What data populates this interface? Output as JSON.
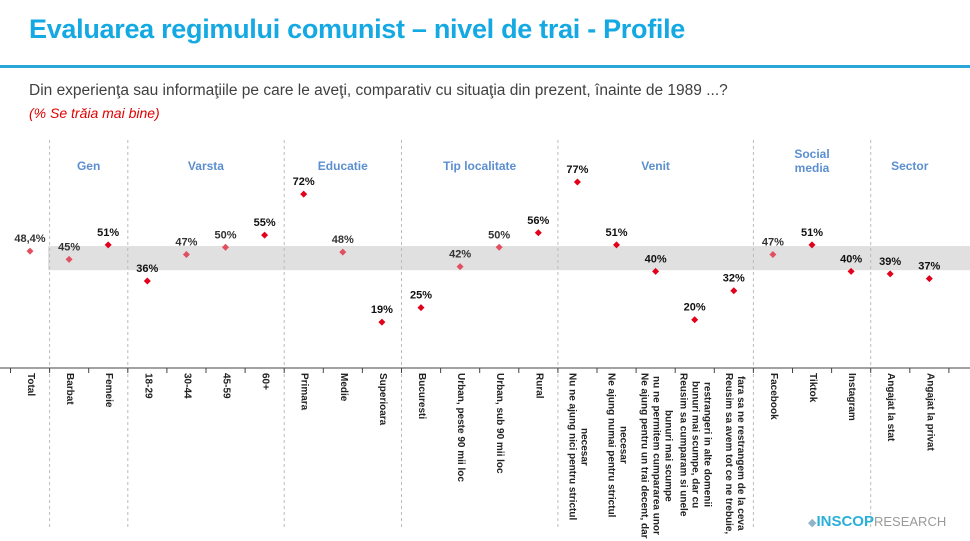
{
  "header": {
    "title": "Evaluarea regimului comunist – nivel de trai - Profile",
    "question": "Din experienţa sau informaţiile pe care le aveţi, comparativ cu situaţia din prezent, înainte de 1989 ...?",
    "subtitle": "(% Se trăia mai bine)"
  },
  "logo": {
    "brand": "INSCOP",
    "suffix": "RESEARCH"
  },
  "chart_data": {
    "type": "scatter",
    "ylim": [
      0,
      80
    ],
    "band": [
      40.5,
      50.5
    ],
    "colors": {
      "marker": "#e3001b",
      "band": "#e0e0e0",
      "group": "#5b8fd0"
    },
    "groups": [
      {
        "name": "Gen",
        "start": 1,
        "end": 2
      },
      {
        "name": "Varsta",
        "start": 3,
        "end": 6
      },
      {
        "name": "Educatie",
        "start": 7,
        "end": 9
      },
      {
        "name": "Tip localitate",
        "start": 10,
        "end": 13
      },
      {
        "name": "Venit",
        "start": 14,
        "end": 18
      },
      {
        "name": "Social\nmedia",
        "start": 19,
        "end": 21
      },
      {
        "name": "Sector",
        "start": 22,
        "end": 23
      }
    ],
    "categories": [
      "Total",
      "Barbat",
      "Femeie",
      "18-29",
      "30-44",
      "45-59",
      "60+",
      "Primara",
      "Medie",
      "Superioara",
      "Bucuresti",
      "Urban, peste 90 mii loc",
      "Urban, sub 90 mii loc",
      "Rural",
      "Nu ne ajung nici pentru strictul\nnecesar",
      "Ne ajung numai pentru strictul\nnecesar",
      "Ne ajung pentru un trai decent, dar\nnu ne permitem cumpararea unor\nbunuri mai scumpe",
      "Reusim sa cumparam si unele\nbunuri mai scumpe, dar cu\nrestrangeri in alte domenii",
      "Reusim sa avem tot ce ne trebuie,\nfara sa ne restrangem de la ceva",
      "Facebook",
      "Tiktok",
      "Instagram",
      "Angajat la stat",
      "Angajat la privat"
    ],
    "values": [
      48.4,
      45,
      51,
      36,
      47,
      50,
      55,
      72,
      48,
      19,
      25,
      42,
      50,
      56,
      77,
      51,
      40,
      20,
      32,
      47,
      51,
      40,
      39,
      37
    ],
    "labels": [
      "48,4%",
      "45%",
      "51%",
      "36%",
      "47%",
      "50%",
      "55%",
      "72%",
      "48%",
      "19%",
      "25%",
      "42%",
      "50%",
      "56%",
      "77%",
      "51%",
      "40%",
      "20%",
      "32%",
      "47%",
      "51%",
      "40%",
      "39%",
      "37%"
    ]
  }
}
